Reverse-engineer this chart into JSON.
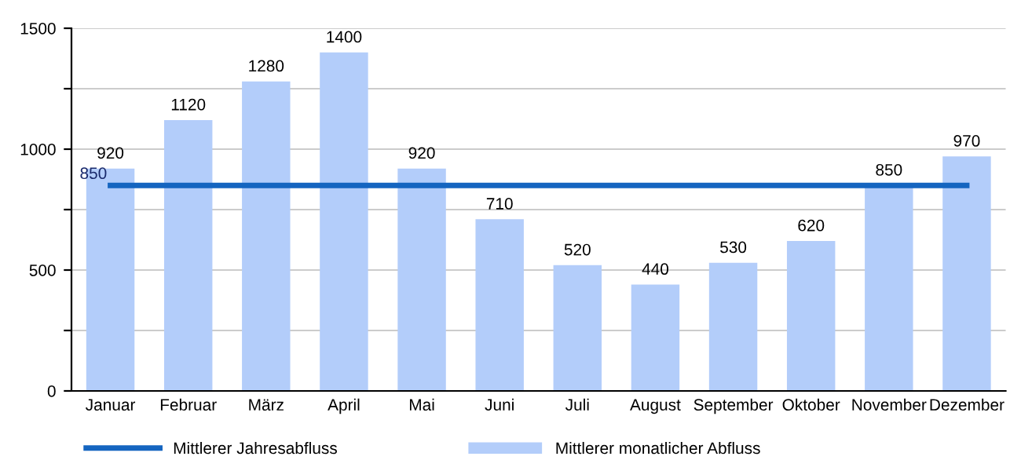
{
  "chart_data": {
    "type": "bar",
    "categories": [
      "Januar",
      "Februar",
      "März",
      "April",
      "Mai",
      "Juni",
      "Juli",
      "August",
      "September",
      "Oktober",
      "November",
      "Dezember"
    ],
    "series": [
      {
        "name": "Mittlerer Jahresabfluss",
        "type": "line",
        "color": "#1565c0",
        "values": [
          850,
          850,
          850,
          850,
          850,
          850,
          850,
          850,
          850,
          850,
          850,
          850
        ],
        "value_labels": [
          "850",
          null,
          null,
          null,
          null,
          null,
          null,
          null,
          null,
          null,
          null,
          null
        ]
      },
      {
        "name": "Mittlerer monatlicher Abfluss",
        "color": "#b3cdfa",
        "values": [
          920,
          1120,
          1280,
          1400,
          920,
          710,
          520,
          440,
          530,
          620,
          850,
          970
        ],
        "data_labels": true
      }
    ],
    "ylim": [
      0,
      1500
    ],
    "yticks": [
      0,
      {
        "value": 250,
        "label": null
      },
      500,
      {
        "value": 750,
        "label": null
      },
      1000,
      {
        "value": 1250,
        "label": null
      },
      1500
    ],
    "grid": "y",
    "legend": "bottom"
  }
}
